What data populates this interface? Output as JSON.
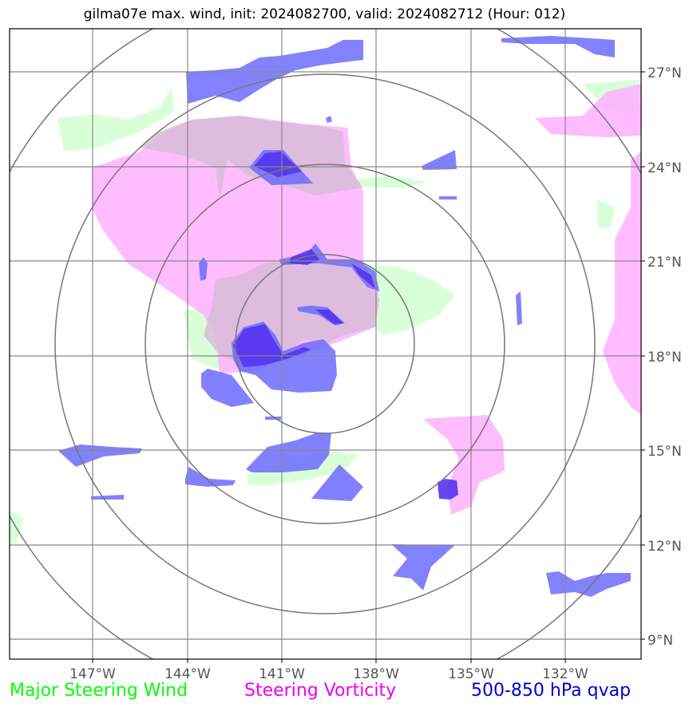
{
  "title": "gilma07e max. wind, init: 2024082700, valid: 2024082712 (Hour: 012)",
  "lat_labels": [
    "27°N",
    "24°N",
    "21°N",
    "18°N",
    "15°N",
    "12°N",
    "9°N"
  ],
  "lon_labels": [
    "147°W",
    "144°W",
    "141°W",
    "138°W",
    "135°W",
    "132°W"
  ],
  "legend": {
    "wind": "Major Steering Wind",
    "vorticity": "Steering Vorticity",
    "qvap": "500-850 hPa qvap"
  },
  "colors": {
    "wind": "#00ff00",
    "vorticity": "#ee00ee",
    "qvap": "#0000cc",
    "wind_fill": "#ccffcc",
    "vort_fill": "#ffb0ff",
    "qvap_fill": "#6c6cff",
    "overlap_fill": "#d8bcd8",
    "qvap_dense": "#5533ee"
  }
}
